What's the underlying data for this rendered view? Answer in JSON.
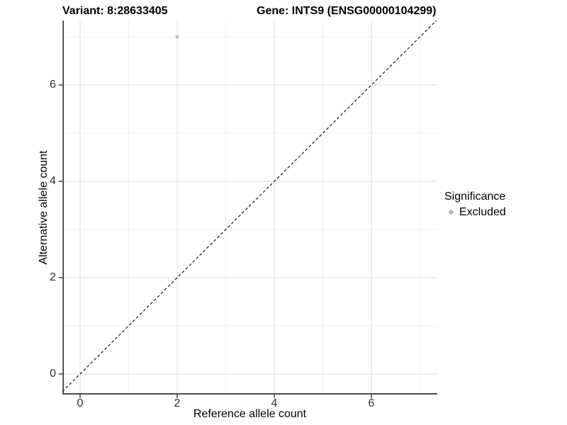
{
  "header": {
    "variant_title": "Variant: 8:28633405",
    "gene_title": "Gene: INTS9 (ENSG00000104299)"
  },
  "axes": {
    "x": {
      "label": "Reference allele count",
      "ticks": [
        "0",
        "2",
        "4",
        "6"
      ]
    },
    "y": {
      "label": "Alternative allele count",
      "ticks": [
        "0",
        "2",
        "4",
        "6"
      ]
    }
  },
  "legend": {
    "title": "Significance",
    "items": [
      {
        "label": "Excluded",
        "color": "#c0c0c0"
      }
    ]
  },
  "chart_data": {
    "type": "scatter",
    "title": "Variant: 8:28633405 | Gene: INTS9 (ENSG00000104299)",
    "xlabel": "Reference allele count",
    "ylabel": "Alternative allele count",
    "xlim": [
      -0.365,
      7.357
    ],
    "ylim": [
      -0.412,
      7.338
    ],
    "x_ticks": [
      0,
      2,
      4,
      6
    ],
    "y_ticks": [
      0,
      2,
      4,
      6
    ],
    "grid_major": [
      0,
      2,
      4,
      6
    ],
    "grid_minor": [
      1,
      3,
      5,
      7
    ],
    "grid": true,
    "legend_position": "right",
    "series": [
      {
        "name": "Excluded",
        "color": "#c0c0c0",
        "point_radius": 2.5,
        "points": [
          {
            "x": 2,
            "y": 7
          }
        ]
      }
    ],
    "reference_line": {
      "kind": "identity",
      "equation": "y = x",
      "style": "dashed",
      "color": "#000000"
    }
  },
  "colors": {
    "background": "#ffffff",
    "grid_major": "#e3e3e3",
    "grid_minor": "#f1f1f1",
    "axis_line": "#333333",
    "tick_label": "#303030"
  }
}
